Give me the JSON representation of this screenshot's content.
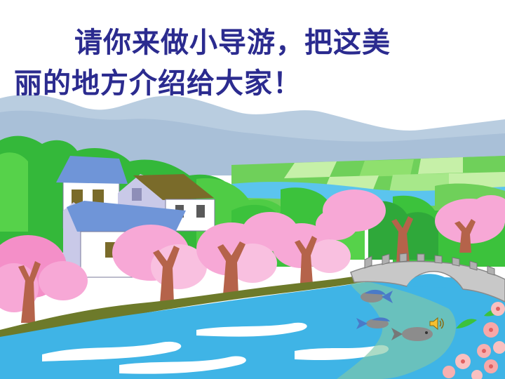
{
  "slide": {
    "title_line1": "请你来做小导游，把这美",
    "title_line2": "丽的地方介绍给大家！"
  },
  "icons": {
    "speaker": "speaker-icon"
  },
  "colors": {
    "title_text": "#2b2b8f",
    "river": "#3fb4e6",
    "blossom": "#f7a8d6",
    "foliage": "#3cc23c",
    "mountain": "#b9cde0"
  }
}
